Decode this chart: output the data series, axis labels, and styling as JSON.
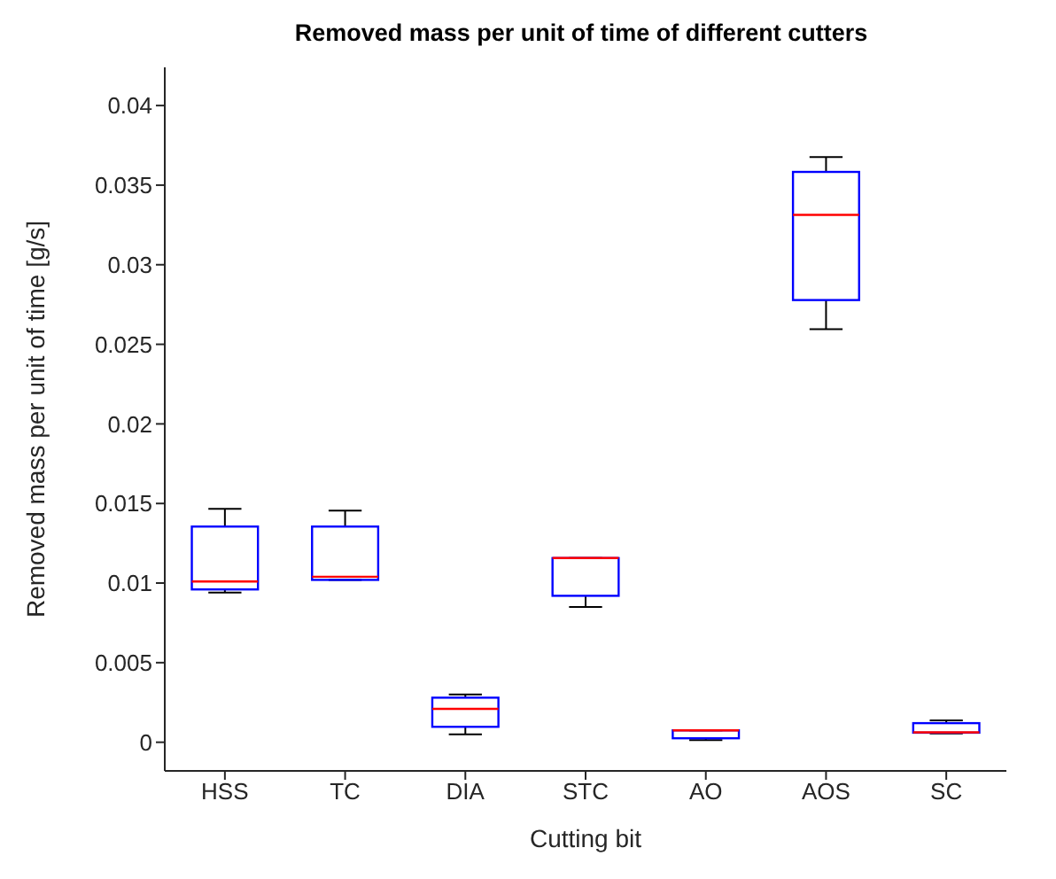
{
  "chart_data": {
    "type": "box",
    "title": "Removed mass per unit of time of different cutters",
    "xlabel": "Cutting bit",
    "ylabel": "Removed mass per unit of time [g/s]",
    "categories": [
      "HSS",
      "TC",
      "DIA",
      "STC",
      "AO",
      "AOS",
      "SC"
    ],
    "boxes": [
      {
        "low": 0.0094,
        "q1": 0.0096,
        "median": 0.0101,
        "q3": 0.01355,
        "high": 0.01466
      },
      {
        "low": 0.0102,
        "q1": 0.0102,
        "median": 0.0104,
        "q3": 0.01355,
        "high": 0.01455
      },
      {
        "low": 0.0005,
        "q1": 0.00097,
        "median": 0.0021,
        "q3": 0.0028,
        "high": 0.003
      },
      {
        "low": 0.0085,
        "q1": 0.0092,
        "median": 0.01157,
        "q3": 0.01157,
        "high": 0.01157
      },
      {
        "low": 0.00014,
        "q1": 0.00025,
        "median": 0.00075,
        "q3": 0.00075,
        "high": 0.00075
      },
      {
        "low": 0.02595,
        "q1": 0.02778,
        "median": 0.03313,
        "q3": 0.03583,
        "high": 0.03677
      },
      {
        "low": 0.00055,
        "q1": 0.0006,
        "median": 0.00062,
        "q3": 0.0012,
        "high": 0.00137
      }
    ],
    "color": "#0000ff",
    "ylim": [
      -0.0018,
      0.0424
    ],
    "yticks": [
      0,
      0.005,
      0.01,
      0.015,
      0.02,
      0.025,
      0.03,
      0.035,
      0.04
    ]
  }
}
